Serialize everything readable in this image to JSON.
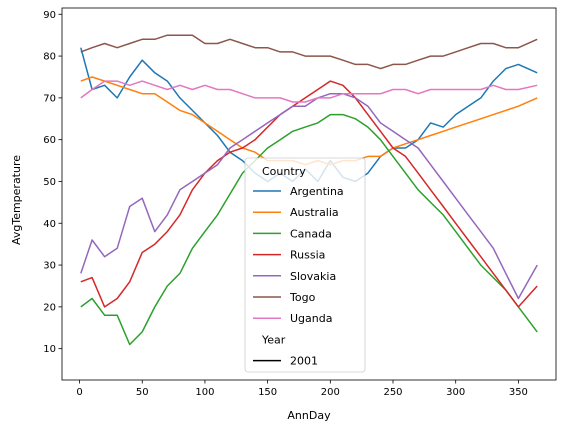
{
  "chart_data": {
    "type": "line",
    "xlabel": "AnnDay",
    "ylabel": "AvgTemperature",
    "xlim": [
      -14,
      380
    ],
    "ylim": [
      2.5,
      91.5
    ],
    "xticks": [
      0,
      50,
      100,
      150,
      200,
      250,
      300,
      350
    ],
    "yticks": [
      10,
      20,
      30,
      40,
      50,
      60,
      70,
      80,
      90
    ],
    "grid": false,
    "legend": {
      "placement": "lower-center",
      "title": "Country",
      "style_title": "Year",
      "style_entries": [
        {
          "label": "2001",
          "color": "#000000"
        }
      ]
    },
    "series": [
      {
        "name": "Argentina",
        "color": "#1f77b4",
        "x": [
          1,
          10,
          20,
          30,
          40,
          50,
          60,
          70,
          80,
          90,
          100,
          110,
          120,
          130,
          140,
          150,
          160,
          170,
          180,
          190,
          200,
          210,
          220,
          230,
          240,
          250,
          260,
          270,
          280,
          290,
          300,
          310,
          320,
          330,
          340,
          350,
          365
        ],
        "y": [
          82,
          72,
          73,
          70,
          75,
          79,
          76,
          74,
          70,
          67,
          64,
          61,
          57,
          55,
          52,
          50,
          52,
          50,
          53,
          50,
          55,
          51,
          50,
          52,
          56,
          58,
          58,
          60,
          64,
          63,
          66,
          68,
          70,
          74,
          77,
          78,
          76
        ]
      },
      {
        "name": "Australia",
        "color": "#ff7f0e",
        "x": [
          1,
          10,
          20,
          30,
          40,
          50,
          60,
          70,
          80,
          90,
          100,
          110,
          120,
          130,
          140,
          150,
          160,
          170,
          180,
          190,
          200,
          210,
          220,
          230,
          240,
          250,
          260,
          270,
          280,
          290,
          300,
          310,
          320,
          330,
          340,
          350,
          365
        ],
        "y": [
          74,
          75,
          74,
          73,
          72,
          71,
          71,
          69,
          67,
          66,
          64,
          62,
          60,
          58,
          57,
          55,
          55,
          55,
          54,
          55,
          54,
          55,
          55,
          56,
          56,
          58,
          59,
          60,
          61,
          62,
          63,
          64,
          65,
          66,
          67,
          68,
          70
        ]
      },
      {
        "name": "Canada",
        "color": "#2ca02c",
        "x": [
          1,
          10,
          20,
          30,
          40,
          50,
          60,
          70,
          80,
          90,
          100,
          110,
          120,
          130,
          140,
          150,
          160,
          170,
          180,
          190,
          200,
          210,
          220,
          230,
          240,
          250,
          260,
          270,
          280,
          290,
          300,
          310,
          320,
          330,
          340,
          350,
          365
        ],
        "y": [
          20,
          22,
          18,
          18,
          11,
          14,
          20,
          25,
          28,
          34,
          38,
          42,
          47,
          52,
          55,
          58,
          60,
          62,
          63,
          64,
          66,
          66,
          65,
          63,
          60,
          56,
          52,
          48,
          45,
          42,
          38,
          34,
          30,
          27,
          24,
          20,
          14
        ]
      },
      {
        "name": "Russia",
        "color": "#d62728",
        "x": [
          1,
          10,
          20,
          30,
          40,
          50,
          60,
          70,
          80,
          90,
          100,
          110,
          120,
          130,
          140,
          150,
          160,
          170,
          180,
          190,
          200,
          210,
          220,
          230,
          240,
          250,
          260,
          270,
          280,
          290,
          300,
          310,
          320,
          330,
          340,
          350,
          365
        ],
        "y": [
          26,
          27,
          20,
          22,
          26,
          33,
          35,
          38,
          42,
          48,
          52,
          55,
          57,
          58,
          60,
          63,
          66,
          68,
          70,
          72,
          74,
          73,
          70,
          66,
          62,
          58,
          56,
          52,
          48,
          44,
          40,
          36,
          32,
          28,
          24,
          20,
          25
        ]
      },
      {
        "name": "Slovakia",
        "color": "#9467bd",
        "x": [
          1,
          10,
          20,
          30,
          40,
          50,
          60,
          70,
          80,
          90,
          100,
          110,
          120,
          130,
          140,
          150,
          160,
          170,
          180,
          190,
          200,
          210,
          220,
          230,
          240,
          250,
          260,
          270,
          280,
          290,
          300,
          310,
          320,
          330,
          340,
          350,
          365
        ],
        "y": [
          28,
          36,
          32,
          34,
          44,
          46,
          38,
          42,
          48,
          50,
          52,
          54,
          58,
          60,
          62,
          64,
          66,
          68,
          68,
          70,
          71,
          71,
          70,
          68,
          64,
          62,
          60,
          58,
          54,
          50,
          46,
          42,
          38,
          34,
          28,
          22,
          30
        ]
      },
      {
        "name": "Togo",
        "color": "#8c564b",
        "x": [
          1,
          10,
          20,
          30,
          40,
          50,
          60,
          70,
          80,
          90,
          100,
          110,
          120,
          130,
          140,
          150,
          160,
          170,
          180,
          190,
          200,
          210,
          220,
          230,
          240,
          250,
          260,
          270,
          280,
          290,
          300,
          310,
          320,
          330,
          340,
          350,
          365
        ],
        "y": [
          81,
          82,
          83,
          82,
          83,
          84,
          84,
          85,
          85,
          85,
          83,
          83,
          84,
          83,
          82,
          82,
          81,
          81,
          80,
          80,
          80,
          79,
          78,
          78,
          77,
          78,
          78,
          79,
          80,
          80,
          81,
          82,
          83,
          83,
          82,
          82,
          84
        ]
      },
      {
        "name": "Uganda",
        "color": "#e377c2",
        "x": [
          1,
          10,
          20,
          30,
          40,
          50,
          60,
          70,
          80,
          90,
          100,
          110,
          120,
          130,
          140,
          150,
          160,
          170,
          180,
          190,
          200,
          210,
          220,
          230,
          240,
          250,
          260,
          270,
          280,
          290,
          300,
          310,
          320,
          330,
          340,
          350,
          365
        ],
        "y": [
          70,
          72,
          74,
          74,
          73,
          74,
          73,
          72,
          73,
          72,
          73,
          72,
          72,
          71,
          70,
          70,
          70,
          69,
          69,
          70,
          70,
          71,
          71,
          71,
          71,
          72,
          72,
          71,
          72,
          72,
          72,
          72,
          72,
          73,
          72,
          72,
          73
        ]
      }
    ]
  }
}
